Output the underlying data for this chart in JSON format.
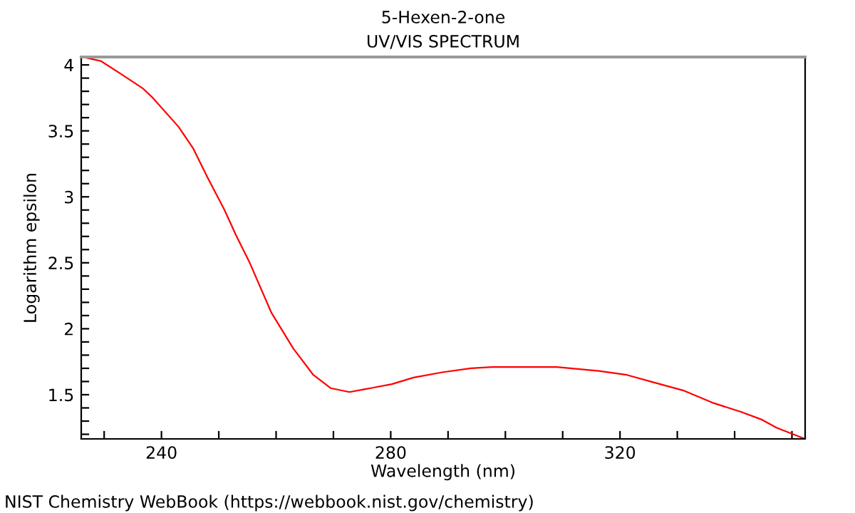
{
  "chart_data": {
    "type": "line",
    "title": "5-Hexen-2-one",
    "subtitle": "UV/VIS SPECTRUM",
    "xlabel": "Wavelength (nm)",
    "ylabel": "Logarithm epsilon",
    "annotations": [
      "NIST Chemistry WebBook (https://webbook.nist.gov/chemistry)"
    ],
    "series": [
      {
        "color": "#ff0000",
        "x": [
          226.2,
          229.4,
          233,
          236.8,
          238.5,
          243,
          245.5,
          248,
          251,
          253,
          255.4,
          259.2,
          263,
          266.5,
          269.5,
          272.8,
          276.5,
          280.2,
          284,
          289,
          294,
          297.7,
          309,
          316.3,
          321.2,
          326.2,
          331.2,
          336.1,
          341.1,
          344.8,
          347.3,
          352
        ],
        "values": [
          4.06,
          4.03,
          3.93,
          3.82,
          3.75,
          3.53,
          3.37,
          3.15,
          2.9,
          2.71,
          2.5,
          2.12,
          1.85,
          1.65,
          1.55,
          1.52,
          1.55,
          1.58,
          1.63,
          1.67,
          1.7,
          1.71,
          1.71,
          1.68,
          1.65,
          1.59,
          1.53,
          1.44,
          1.37,
          1.31,
          1.25,
          1.17
        ]
      }
    ],
    "xlim": [
      226,
      352.3
    ],
    "ylim": [
      1.165,
      4.06
    ],
    "xticks": [
      {
        "value": 230,
        "label": null
      },
      240,
      {
        "value": 250,
        "label": null
      },
      {
        "value": 260,
        "label": null
      },
      {
        "value": 270,
        "label": null
      },
      280,
      {
        "value": 290,
        "label": null
      },
      {
        "value": 300,
        "label": null
      },
      {
        "value": 310,
        "label": null
      },
      320,
      {
        "value": 330,
        "label": null
      },
      {
        "value": 340,
        "label": null
      },
      {
        "value": 350,
        "label": null
      }
    ],
    "yticks": [
      {
        "value": 1.2,
        "label": null
      },
      {
        "value": 1.3,
        "label": null
      },
      {
        "value": 1.4,
        "label": null
      },
      1.5,
      {
        "value": 1.6,
        "label": null
      },
      {
        "value": 1.7,
        "label": null
      },
      {
        "value": 1.8,
        "label": null
      },
      {
        "value": 1.9,
        "label": null
      },
      2,
      {
        "value": 2.1,
        "label": null
      },
      {
        "value": 2.2,
        "label": null
      },
      {
        "value": 2.3,
        "label": null
      },
      {
        "value": 2.4,
        "label": null
      },
      2.5,
      {
        "value": 2.6,
        "label": null
      },
      {
        "value": 2.7,
        "label": null
      },
      {
        "value": 2.8,
        "label": null
      },
      {
        "value": 2.9,
        "label": null
      },
      3,
      {
        "value": 3.1,
        "label": null
      },
      {
        "value": 3.2,
        "label": null
      },
      {
        "value": 3.3,
        "label": null
      },
      {
        "value": 3.4,
        "label": null
      },
      3.5,
      {
        "value": 3.6,
        "label": null
      },
      {
        "value": 3.7,
        "label": null
      },
      {
        "value": 3.8,
        "label": null
      },
      {
        "value": 3.9,
        "label": null
      },
      4
    ]
  }
}
